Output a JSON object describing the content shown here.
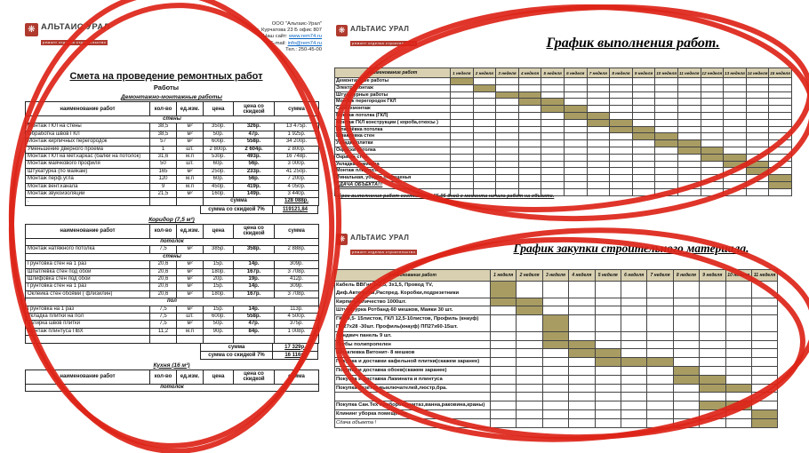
{
  "colors": {
    "bar": "#a89c62",
    "gantt_header_bg": "#d8d0b0",
    "red_pen": "#dd2418",
    "logo_red": "#b03a2e",
    "link_blue": "#0563c1"
  },
  "logo": {
    "brand": "Альтаис Урал",
    "tagline": "ремонт отделка строительство",
    "icon": "❋"
  },
  "estimate": {
    "contact": {
      "company": "ООО \"Альтаис-Урал\"",
      "address": "Ул. Курчатова 23 Б офис 807",
      "site_label": "Наш сайт:",
      "site": "www.rem74.ru",
      "email_label": "E-mail:",
      "email": "info@rem74.ru",
      "phone": "Тел.: 250-45-00"
    },
    "title": "Смета на проведение ремонтных работ",
    "subtitle": "Работы",
    "columns": [
      "наименование работ",
      "кол-во",
      "ед.изм.",
      "цена",
      "цена со скидкой",
      "сумма"
    ],
    "sections": [
      {
        "title": "Демонтажно-монтажные работы",
        "groups": [
          {
            "name": "стены",
            "rows": [
              [
                "Монтаж ГКЛ на стены",
                "38,5",
                "м²",
                "350р.",
                "326р.",
                "13 475р."
              ],
              [
                "Обработка швов ГКЛ",
                "38,5",
                "м²",
                "50р.",
                "47р.",
                "1 925р."
              ],
              [
                "Монтаж кирпичных перегородок",
                "57",
                "м²",
                "600р.",
                "558р.",
                "34 200р."
              ],
              [
                "Уменьшение дверного проема",
                "1",
                "шт.",
                "2 800р.",
                "2 604р.",
                "2 800р."
              ],
              [
                "Монтаж ГКЛ на мет.каркас (балки на потолок)",
                "31,6",
                "м.п",
                "530р.",
                "493р.",
                "16 748р."
              ],
              [
                "Монтаж маячкового профиля",
                "50",
                "шт.",
                "60р.",
                "56р.",
                "3 000р."
              ],
              [
                "Штукатурка (по маякам)",
                "165",
                "м²",
                "250р.",
                "233р.",
                "41 250р."
              ],
              [
                "Монтаж перф.угла",
                "120",
                "м.п",
                "60р.",
                "56р.",
                "7 200р."
              ],
              [
                "Монтаж вент.канала",
                "9",
                "м.п",
                "450р.",
                "419р.",
                "4 050р."
              ],
              [
                "Монтаж звукоизоляции",
                "21,5",
                "м²",
                "160р.",
                "149р.",
                "3 440р."
              ]
            ]
          }
        ],
        "dot": ".",
        "sum_label": "сумма",
        "sum_value": "128 088р.",
        "float_sums": [
          {
            "label": "сумма со скидкой 7%",
            "value": "119121,84"
          }
        ]
      },
      {
        "title": "Коридор (7,5 м²)",
        "groups": [
          {
            "name": "потолок",
            "rows": [
              [
                "Монтаж натяжного потолка",
                "7,5",
                "м²",
                "385р.",
                "358р.",
                "2 888р."
              ]
            ]
          },
          {
            "name": "стены",
            "rows": [
              [
                "Грунтовка стен на 1 раз",
                "20,6",
                "м²",
                "15р.",
                "14р.",
                "309р."
              ],
              [
                "Шпатлевка стен под обои",
                "20,6",
                "м²",
                "180р.",
                "167р.",
                "3 708р."
              ],
              [
                "Шлифовка стен под обои",
                "20,6",
                "м²",
                "20р.",
                "19р.",
                "412р."
              ],
              [
                "Грунтовка стен на 1 раз",
                "20,6",
                "м²",
                "15р.",
                "14р.",
                "309р."
              ],
              [
                "Оклейка стен обоями ( флизилин)",
                "20,6",
                "м²",
                "180р.",
                "167р.",
                "3 708р."
              ]
            ]
          },
          {
            "name": "пол",
            "rows": [
              [
                "Грунтовка на 1 раз",
                "7,5",
                "м²",
                "15р.",
                "14р.",
                "113р."
              ],
              [
                "Укладка плитки на пол",
                "7,5",
                "шт.",
                "600р.",
                "558р.",
                "4 500р."
              ],
              [
                "Затирка швов плитки",
                "7,5",
                "м²",
                "50р.",
                "47р.",
                "375р."
              ],
              [
                "Монтаж плинтуса ПВХ",
                "11,2",
                "м.п",
                "90р.",
                "84р.",
                "1 008р."
              ]
            ]
          }
        ],
        "empty_row": true,
        "float_sums": [
          {
            "label": "сумма",
            "value": "17 329р."
          },
          {
            "label": "сумма со скидкой 7%",
            "value": "16 116р."
          }
        ]
      },
      {
        "title": "Кухня (16 м²)",
        "groups": [
          {
            "name": "потолок",
            "rows": []
          }
        ]
      }
    ]
  },
  "schedule1": {
    "title": "График выполнения работ.",
    "name_col": "наименование работ",
    "weeks": [
      "1 неделя",
      "2 неделя",
      "3 неделя",
      "4 неделя",
      "5 неделя",
      "6 неделя",
      "7 неделя",
      "8 неделя",
      "9 неделя",
      "10 неделя",
      "11 неделя",
      "12 неделя",
      "13 неделя",
      "14 неделя",
      "15 неделя"
    ],
    "tasks": [
      {
        "label": "Демонтажные работы",
        "start": 1,
        "end": 1
      },
      {
        "label": "Электромонтаж",
        "start": 2,
        "end": 2
      },
      {
        "label": "Штукатурные работы",
        "start": 3,
        "end": 4
      },
      {
        "label": "Монтаж  перегородок ГКЛ",
        "start": 4,
        "end": 5
      },
      {
        "label": "Сантехмонтаж",
        "start": 5,
        "end": 6
      },
      {
        "label": "Монтаж потолка (ГКЛ)",
        "start": 6,
        "end": 7
      },
      {
        "label": "Монтаж ГКЛ конструкции ( короба,откосы )",
        "start": 7,
        "end": 8
      },
      {
        "label": "Шпатлёвка  потолка",
        "start": 8,
        "end": 9
      },
      {
        "label": "Шпаклевка стен",
        "start": 9,
        "end": 10
      },
      {
        "label": "Укладка плитки",
        "start": 10,
        "end": 11
      },
      {
        "label": "Окраска потолка",
        "start": 11,
        "end": 12
      },
      {
        "label": "Окраска стен",
        "start": 12,
        "end": 13
      },
      {
        "label": "Укладка ламината",
        "start": 13,
        "end": 14
      },
      {
        "label": "Монтаж плинтуса",
        "start": 14,
        "end": 14
      },
      {
        "label": "Финальная, уборка помещенья",
        "start": 15,
        "end": 15
      },
      {
        "label": "СДАЧА ОБЪЕКТА!!!",
        "start": 15,
        "end": 15,
        "underline": true
      },
      {
        "label": "",
        "start": 0,
        "end": 0
      }
    ],
    "note": "Срок выполнения работ составляет 85-95 дней с момента начала работ на объекте."
  },
  "schedule2": {
    "title": "График закупки строительного материала.",
    "name_col": "наименование работ",
    "weeks": [
      "1 неделя",
      "2 неделя",
      "3 неделя",
      "4 неделя",
      "5 неделя",
      "6 неделя",
      "7 неделя",
      "8 неделя",
      "9 неделя",
      "10 неделя",
      "11 неделя"
    ],
    "tasks": [
      {
        "label": "Кабель ВВГнг 3х2,5, 3х1,5, Провод TV,\nДиф.Автоматы,Распред. Коробки,подрезетники",
        "start": 1,
        "end": 1
      },
      {
        "label": "Кирпич количество 1000шт.",
        "start": 1,
        "end": 2
      },
      {
        "label": "Штукатурка Ротбанд-60 мешков, Маяки 30 шт.",
        "start": 2,
        "end": 2
      },
      {
        "label": "ГКЛ 9,5- 15листов, ГКЛ 12,5-10листов, Профиль (кнауф)\nПН27х28 -30шт. Профиль(кнауф) ПП27х60-15шт.",
        "start": 3,
        "end": 3
      },
      {
        "label": "Сэндвич панель 9 шт.",
        "start": 3,
        "end": 3
      },
      {
        "label": "Трубы полипропелен",
        "start": 3,
        "end": 4
      },
      {
        "label": "Шпаклевка Витонит- 8 мешков",
        "start": 4,
        "end": 5
      },
      {
        "label": "Покупка и доставки кафельной плитки(скажем заранее)",
        "start": 5,
        "end": 7
      },
      {
        "label": "Покупка и доставка обоев(скажем заранее)",
        "start": 8,
        "end": 8
      },
      {
        "label": "Покупка и доставка Ламината и плинтуса",
        "start": 8,
        "end": 9
      },
      {
        "label": "Покупка резеток,выключателей,люстр,бра.",
        "start": 9,
        "end": 10
      },
      {
        "label": "",
        "start": 0,
        "end": 0
      },
      {
        "label": "Покупка Сан.Тех приборов(унитаз,ванна,раковина,краны)",
        "start": 9,
        "end": 10
      },
      {
        "label": "Клининг уборка помещения",
        "start": 11,
        "end": 11
      },
      {
        "label": "Сдача объекта !",
        "start": 11,
        "end": 11,
        "italic": true
      }
    ]
  }
}
